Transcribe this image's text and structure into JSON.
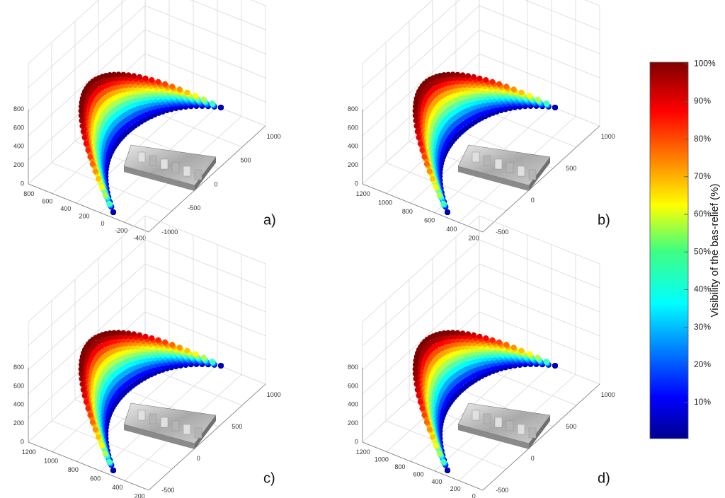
{
  "colorbar": {
    "title": "Visibility of the bas-relief (%)",
    "ticks": [
      "10%",
      "20%",
      "30%",
      "40%",
      "50%",
      "60%",
      "70%",
      "80%",
      "90%",
      "100%"
    ]
  },
  "panels": [
    {
      "label": "a)",
      "z_ticks": [
        "0",
        "200",
        "400",
        "600",
        "800"
      ],
      "x_ticks": [
        "800",
        "600",
        "400",
        "200",
        "0",
        "-200",
        "-400"
      ],
      "y_ticks": [
        "-1000",
        "-500",
        "0",
        "500",
        "1000"
      ]
    },
    {
      "label": "b)",
      "z_ticks": [
        "0",
        "200",
        "400",
        "600",
        "800"
      ],
      "x_ticks": [
        "1200",
        "1000",
        "800",
        "600",
        "400",
        "200"
      ],
      "y_ticks": [
        "-500",
        "0",
        "500",
        "1000"
      ]
    },
    {
      "label": "c)",
      "z_ticks": [
        "0",
        "200",
        "400",
        "600",
        "800"
      ],
      "x_ticks": [
        "1200",
        "1000",
        "800",
        "600",
        "400",
        "200"
      ],
      "y_ticks": [
        "-500",
        "0",
        "500",
        "1000"
      ]
    },
    {
      "label": "d)",
      "z_ticks": [
        "0",
        "200",
        "400",
        "600",
        "800"
      ],
      "x_ticks": [
        "1200",
        "1000",
        "800",
        "600",
        "400",
        "200",
        "0"
      ],
      "y_ticks": [
        "-500",
        "0",
        "500",
        "1000"
      ]
    }
  ]
}
